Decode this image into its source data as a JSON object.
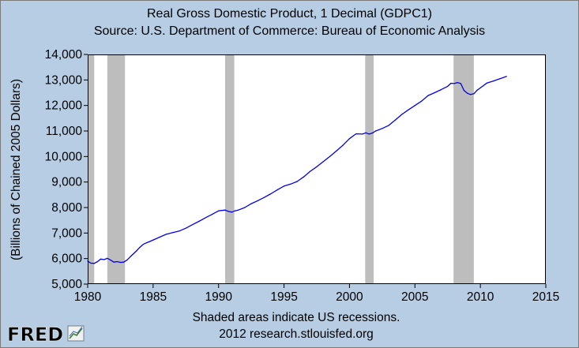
{
  "chart_data": {
    "type": "line",
    "title": "Real Gross Domestic Product, 1 Decimal (GDPC1)",
    "subtitle": "Source: U.S. Department of Commerce: Bureau of Economic Analysis",
    "ylabel": "(Billions of Chained 2005 Dollars)",
    "xlabel": "",
    "xlim": [
      1980,
      2015
    ],
    "ylim": [
      5000,
      14000
    ],
    "x_ticks": [
      1980,
      1985,
      1990,
      1995,
      2000,
      2005,
      2010,
      2015
    ],
    "x_tick_labels": [
      "1980",
      "1985",
      "1990",
      "1995",
      "2000",
      "2005",
      "2010",
      "2015"
    ],
    "y_ticks": [
      5000,
      6000,
      7000,
      8000,
      9000,
      10000,
      11000,
      12000,
      13000,
      14000
    ],
    "y_tick_labels": [
      "5,000",
      "6,000",
      "7,000",
      "8,000",
      "9,000",
      "10,000",
      "11,000",
      "12,000",
      "13,000",
      "14,000"
    ],
    "grid": false,
    "recessions": [
      {
        "start": 1980.0,
        "end": 1980.5
      },
      {
        "start": 1981.5,
        "end": 1982.85
      },
      {
        "start": 1990.5,
        "end": 1991.2
      },
      {
        "start": 2001.2,
        "end": 2001.85
      },
      {
        "start": 2007.95,
        "end": 2009.5
      }
    ],
    "series": [
      {
        "color": "#0000ee",
        "points": [
          [
            1980.0,
            5900
          ],
          [
            1980.25,
            5820
          ],
          [
            1980.5,
            5810
          ],
          [
            1980.75,
            5880
          ],
          [
            1981.0,
            5980
          ],
          [
            1981.25,
            5960
          ],
          [
            1981.5,
            6010
          ],
          [
            1981.75,
            5940
          ],
          [
            1982.0,
            5860
          ],
          [
            1982.25,
            5880
          ],
          [
            1982.5,
            5850
          ],
          [
            1982.75,
            5860
          ],
          [
            1983.0,
            5940
          ],
          [
            1983.25,
            6070
          ],
          [
            1983.5,
            6190
          ],
          [
            1983.75,
            6310
          ],
          [
            1984.0,
            6450
          ],
          [
            1984.25,
            6560
          ],
          [
            1984.5,
            6620
          ],
          [
            1984.75,
            6670
          ],
          [
            1985.0,
            6730
          ],
          [
            1985.5,
            6840
          ],
          [
            1986.0,
            6950
          ],
          [
            1986.5,
            7020
          ],
          [
            1987.0,
            7080
          ],
          [
            1987.5,
            7190
          ],
          [
            1988.0,
            7330
          ],
          [
            1988.5,
            7460
          ],
          [
            1989.0,
            7600
          ],
          [
            1989.5,
            7730
          ],
          [
            1990.0,
            7870
          ],
          [
            1990.5,
            7900
          ],
          [
            1990.75,
            7850
          ],
          [
            1991.0,
            7820
          ],
          [
            1991.25,
            7870
          ],
          [
            1991.5,
            7900
          ],
          [
            1992.0,
            8000
          ],
          [
            1992.5,
            8150
          ],
          [
            1993.0,
            8270
          ],
          [
            1993.5,
            8400
          ],
          [
            1994.0,
            8540
          ],
          [
            1994.5,
            8700
          ],
          [
            1995.0,
            8840
          ],
          [
            1995.5,
            8920
          ],
          [
            1996.0,
            9020
          ],
          [
            1996.5,
            9200
          ],
          [
            1997.0,
            9420
          ],
          [
            1997.5,
            9600
          ],
          [
            1998.0,
            9800
          ],
          [
            1998.5,
            10000
          ],
          [
            1999.0,
            10220
          ],
          [
            1999.5,
            10440
          ],
          [
            2000.0,
            10700
          ],
          [
            2000.5,
            10890
          ],
          [
            2001.0,
            10880
          ],
          [
            2001.25,
            10930
          ],
          [
            2001.5,
            10880
          ],
          [
            2001.75,
            10920
          ],
          [
            2002.0,
            11000
          ],
          [
            2002.5,
            11100
          ],
          [
            2003.0,
            11220
          ],
          [
            2003.5,
            11430
          ],
          [
            2004.0,
            11650
          ],
          [
            2004.5,
            11830
          ],
          [
            2005.0,
            12000
          ],
          [
            2005.5,
            12170
          ],
          [
            2006.0,
            12390
          ],
          [
            2006.5,
            12500
          ],
          [
            2007.0,
            12620
          ],
          [
            2007.5,
            12750
          ],
          [
            2007.75,
            12870
          ],
          [
            2008.0,
            12860
          ],
          [
            2008.25,
            12900
          ],
          [
            2008.5,
            12860
          ],
          [
            2008.75,
            12590
          ],
          [
            2009.0,
            12480
          ],
          [
            2009.25,
            12430
          ],
          [
            2009.5,
            12460
          ],
          [
            2009.75,
            12600
          ],
          [
            2010.0,
            12690
          ],
          [
            2010.5,
            12880
          ],
          [
            2011.0,
            12960
          ],
          [
            2011.5,
            13050
          ],
          [
            2012.0,
            13140
          ]
        ]
      }
    ],
    "footer": {
      "note": "Shaded areas indicate US recessions.",
      "source": "2012 research.stlouisfed.org"
    },
    "logo": "FRED"
  }
}
